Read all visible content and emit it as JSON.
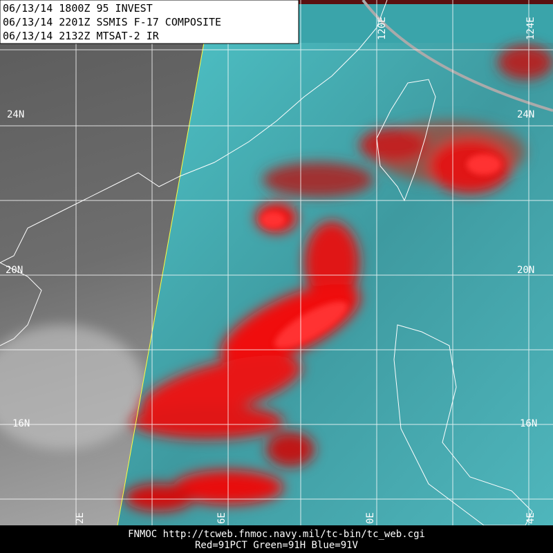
{
  "header": {
    "lines": [
      "06/13/14 1800Z  95 INVEST",
      "06/13/14 2201Z  SSMIS F-17 COMPOSITE",
      "06/13/14 2132Z  MTSAT-2 IR"
    ]
  },
  "lat_labels": {
    "left": [
      "24N",
      "20N",
      "16N"
    ],
    "right": [
      "24N",
      "20N",
      "16N"
    ]
  },
  "lon_labels": {
    "top": [
      "120E",
      "124E"
    ],
    "bottom": [
      "2E",
      "6E",
      "0E",
      "4E"
    ]
  },
  "footer": {
    "lines": [
      "FNMOC  http://tcweb.fnmoc.navy.mil/tc-bin/tc_web.cgi",
      "Red=91PCT  Green=91H  Blue=91V"
    ]
  }
}
